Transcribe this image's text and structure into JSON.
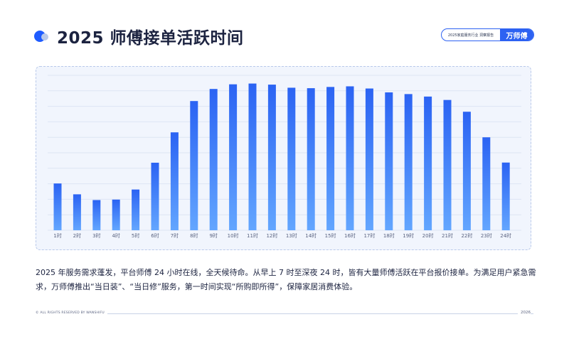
{
  "header": {
    "title": "2025 师傅接单活跃时间",
    "brand_report": "2025家庭服务行业 洞察报告",
    "brand_logo": "万师傅"
  },
  "colors": {
    "accent": "#1f5cff",
    "bar_top": "#2b63f3",
    "bar_bottom": "#63a6ff",
    "panel_bg": "#f1f5fd",
    "gridline": "#dde5f4"
  },
  "chart_data": {
    "type": "bar",
    "categories": [
      "1时",
      "2时",
      "3时",
      "4时",
      "5时",
      "6时",
      "7时",
      "8时",
      "9时",
      "10时",
      "11时",
      "12时",
      "13时",
      "14时",
      "15时",
      "16时",
      "17时",
      "18时",
      "19时",
      "20时",
      "21时",
      "22时",
      "23时",
      "24时"
    ],
    "values": [
      30.2,
      23.2,
      19.5,
      19.8,
      26.3,
      43.6,
      63.2,
      83.4,
      91.2,
      94.2,
      94.7,
      94.0,
      92.0,
      91.7,
      92.5,
      92.9,
      91.5,
      89.0,
      87.9,
      86.3,
      84.1,
      76.5,
      60.0,
      43.7
    ],
    "title": "",
    "xlabel": "",
    "ylabel": "",
    "ylim": [
      0,
      100
    ],
    "grid": true,
    "legend": "none",
    "y_tick_labels_shown": false
  },
  "body_text": "2025 年服务需求蓬发，平台师傅 24 小时在线，全天候待命。从早上 7 时至深夜 24 时，皆有大量师傅活跃在平台报价接单。为满足用户紧急需求，万师傅推出“当日装”、“当日修”服务，第一时间实现“所购即所得”，保障家居消费体验。",
  "footer": {
    "copyright": "© ALL RIGHTS RESERVED BY WANSHIFU",
    "year": "2026"
  }
}
